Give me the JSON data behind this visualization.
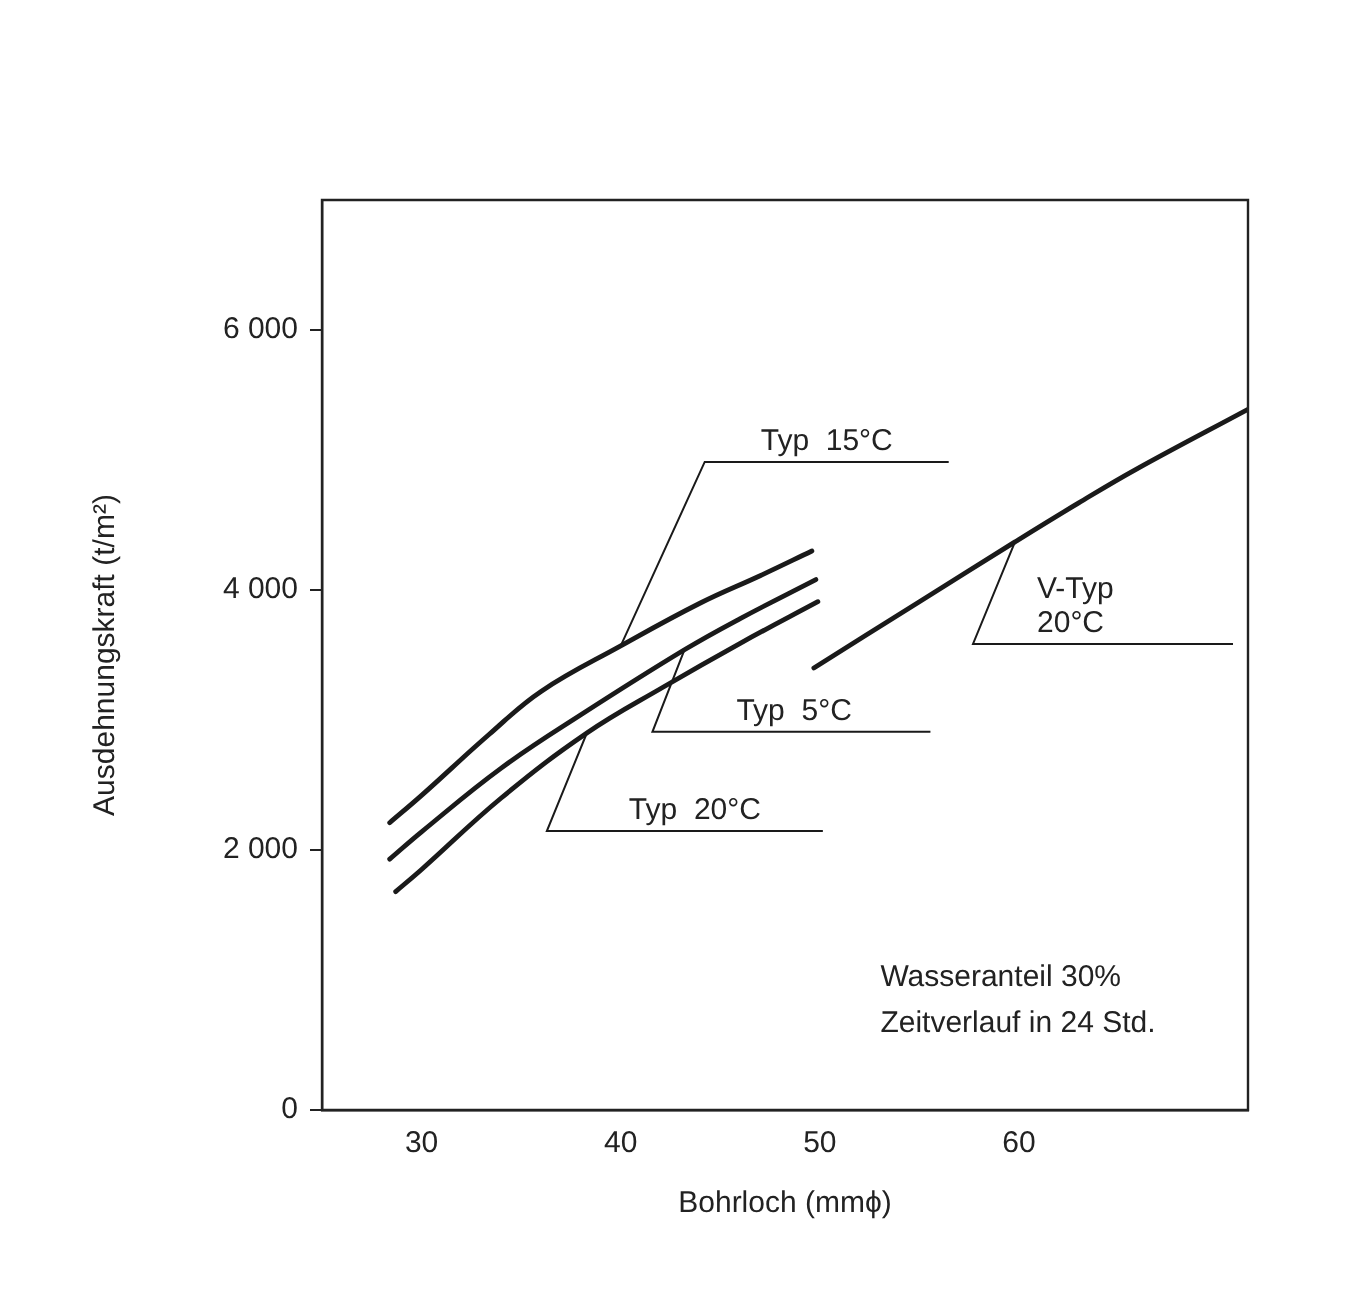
{
  "chart_data": {
    "type": "line",
    "xlabel": "Bohrloch (mmϕ)",
    "ylabel": "Ausdehnungskraft (t/m²)",
    "xlim": [
      25,
      71.5
    ],
    "xticks": [
      30,
      40,
      50,
      60
    ],
    "ylim": [
      0,
      7000
    ],
    "yticks": [
      0,
      {
        "value": 2000,
        "label": "2 000"
      },
      {
        "value": 4000,
        "label": "4 000"
      },
      {
        "value": 6000,
        "label": "6 000"
      }
    ],
    "grid": false,
    "legend": false,
    "marker": "none",
    "line_style": "solid",
    "series": [
      {
        "name": "Typ  15°C",
        "color": "#1a1a1a",
        "x": [
          28.4,
          30,
          33.4,
          36,
          40,
          44,
          47,
          49.6
        ],
        "values": [
          2210,
          2420,
          2890,
          3220,
          3570,
          3900,
          4110,
          4300
        ]
      },
      {
        "name": "Typ  5°C",
        "color": "#1a1a1a",
        "x": [
          28.4,
          30,
          34,
          38,
          43.2,
          46,
          49.8
        ],
        "values": [
          1930,
          2140,
          2630,
          3040,
          3540,
          3780,
          4080
        ]
      },
      {
        "name": "Typ  20°C",
        "color": "#1a1a1a",
        "x": [
          28.7,
          30,
          34,
          38.3,
          42.1,
          46,
          49.9
        ],
        "values": [
          1680,
          1850,
          2400,
          2900,
          3250,
          3590,
          3910
        ]
      },
      {
        "name": "V-Typ\n20°C",
        "color": "#1a1a1a",
        "x": [
          49.7,
          55,
          59.8,
          63,
          65.9,
          71.5
        ],
        "values": [
          3400,
          3910,
          4370,
          4670,
          4930,
          5390
        ]
      }
    ],
    "annotations": [
      "Wasseranteil 30%",
      "Zeitverlauf in 24 Std."
    ]
  }
}
